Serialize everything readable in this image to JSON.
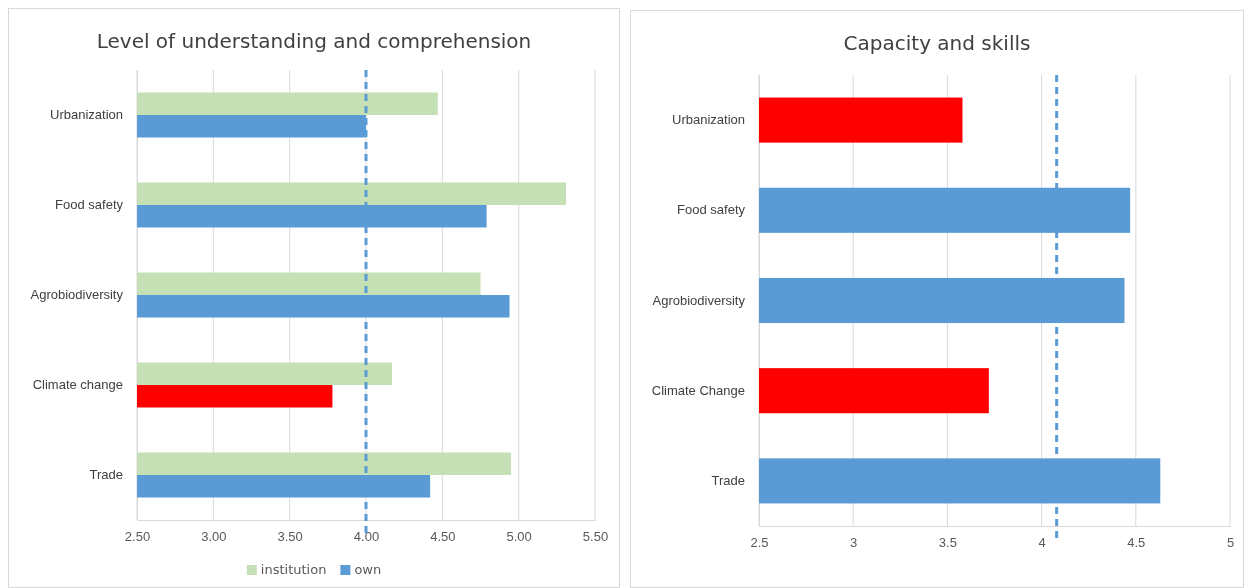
{
  "chart_data": [
    {
      "type": "bar",
      "orientation": "horizontal",
      "title": "Level of understanding and comprehension",
      "categories": [
        "Urbanization",
        "Food safety",
        "Agrobiodiversity",
        "Climate change",
        "Trade"
      ],
      "series": [
        {
          "name": "institution",
          "color": "#c5e0b4",
          "values": [
            4.47,
            5.31,
            4.75,
            4.17,
            4.95
          ]
        },
        {
          "name": "own",
          "color": "#5b9bd5",
          "colors": [
            "#5b9bd5",
            "#5b9bd5",
            "#5b9bd5",
            "#ff0000",
            "#5b9bd5"
          ],
          "values": [
            4.0,
            4.79,
            4.94,
            3.78,
            4.42
          ]
        }
      ],
      "xlim": [
        2.5,
        5.5
      ],
      "xticks": [
        {
          "value": 2.5,
          "label": "2.50"
        },
        {
          "value": 3,
          "label": "3.00"
        },
        {
          "value": 3.5,
          "label": "3.50"
        },
        {
          "value": 4,
          "label": "4.00"
        },
        {
          "value": 4.5,
          "label": "4.50"
        },
        {
          "value": 5,
          "label": "5.00"
        },
        {
          "value": 5.5,
          "label": "5.50"
        }
      ],
      "grid": "x",
      "legend": "bottom",
      "ref_lines": [
        {
          "axis": "x",
          "value": 4.0,
          "color": "#5b9bd5",
          "line_style": "dashed"
        }
      ]
    },
    {
      "type": "bar",
      "orientation": "horizontal",
      "title": "Capacity and skills",
      "categories": [
        "Urbanization",
        "Food safety",
        "Agrobiodiversity",
        "Climate Change",
        "Trade"
      ],
      "series": [
        {
          "colors": [
            "#ff0000",
            "#5b9bd5",
            "#5b9bd5",
            "#ff0000",
            "#5b9bd5"
          ],
          "values": [
            3.58,
            4.47,
            4.44,
            3.72,
            4.63
          ]
        }
      ],
      "xlim": [
        2.5,
        5
      ],
      "xticks": [
        2.5,
        3,
        3.5,
        4,
        4.5,
        5
      ],
      "grid": "x",
      "legend": false,
      "ref_lines": [
        {
          "axis": "x",
          "value": 4.08,
          "color": "#5b9bd5",
          "line_style": "dashed"
        }
      ]
    }
  ]
}
